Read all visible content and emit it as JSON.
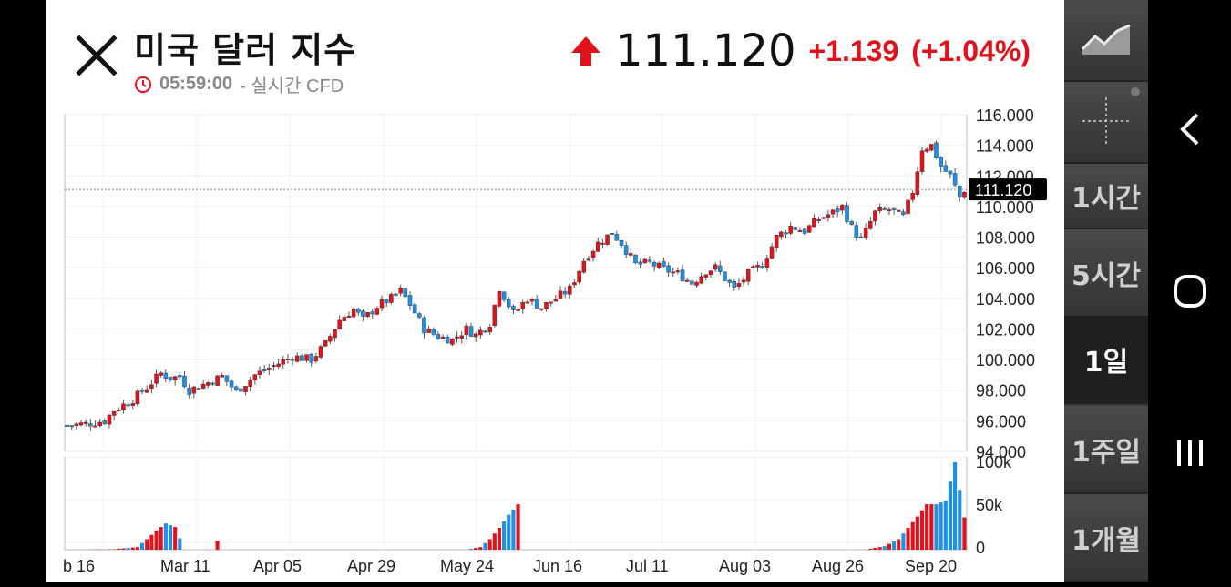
{
  "header": {
    "title": "미국 달러 지수",
    "time": "05:59:00",
    "time_suffix": "- 실시간 CFD",
    "price": "111.120",
    "change": "+1.139",
    "change_pct": "(+1.04%)",
    "up_color": "#e0131c"
  },
  "timeframes": [
    {
      "label": "1시간",
      "active": false
    },
    {
      "label": "5시간",
      "active": false
    },
    {
      "label": "1일",
      "active": true
    },
    {
      "label": "1주일",
      "active": false
    },
    {
      "label": "1개월",
      "active": false
    }
  ],
  "chart_data": {
    "type": "candlestick",
    "current_price_label": "111.120",
    "current_price": 111.12,
    "ylim": [
      94,
      116
    ],
    "y_ticks": [
      "116.000",
      "114.000",
      "112.000",
      "110.000",
      "108.000",
      "106.000",
      "104.000",
      "102.000",
      "100.000",
      "98.000",
      "96.000",
      "94.000"
    ],
    "x_ticks": [
      "b 16",
      "Mar 11",
      "Apr 05",
      "Apr 29",
      "May 24",
      "Jun 16",
      "Jul 11",
      "Aug 03",
      "Aug 26",
      "Sep 20"
    ],
    "volume_ticks": [
      "100k",
      "50k",
      "0"
    ],
    "up_color": "#e0131c",
    "down_color": "#1e90e6",
    "close_path": [
      [
        0,
        95.7
      ],
      [
        4,
        95.8
      ],
      [
        8,
        96.0
      ],
      [
        10,
        96.7
      ],
      [
        14,
        97.4
      ],
      [
        17,
        98.2
      ],
      [
        20,
        99.1
      ],
      [
        22,
        98.8
      ],
      [
        24,
        98.9
      ],
      [
        26,
        98.0
      ],
      [
        30,
        98.5
      ],
      [
        33,
        98.9
      ],
      [
        36,
        97.9
      ],
      [
        40,
        99.0
      ],
      [
        44,
        99.6
      ],
      [
        48,
        100.2
      ],
      [
        52,
        100.0
      ],
      [
        55,
        101.0
      ],
      [
        58,
        102.6
      ],
      [
        61,
        103.3
      ],
      [
        63,
        102.6
      ],
      [
        66,
        103.5
      ],
      [
        69,
        104.0
      ],
      [
        71,
        104.5
      ],
      [
        73,
        103.6
      ],
      [
        76,
        102.0
      ],
      [
        79,
        101.5
      ],
      [
        82,
        101.3
      ],
      [
        85,
        102.0
      ],
      [
        87,
        101.6
      ],
      [
        90,
        102.4
      ],
      [
        92,
        104.7
      ],
      [
        95,
        103.0
      ],
      [
        98,
        104.0
      ],
      [
        101,
        103.4
      ],
      [
        104,
        104.0
      ],
      [
        107,
        104.6
      ],
      [
        110,
        106.5
      ],
      [
        113,
        107.6
      ],
      [
        116,
        108.3
      ],
      [
        118,
        107.6
      ],
      [
        121,
        106.2
      ],
      [
        124,
        106.3
      ],
      [
        127,
        105.9
      ],
      [
        130,
        105.6
      ],
      [
        133,
        105.0
      ],
      [
        136,
        105.8
      ],
      [
        138,
        106.0
      ],
      [
        140,
        105.3
      ],
      [
        142,
        104.6
      ],
      [
        145,
        105.6
      ],
      [
        148,
        106.2
      ],
      [
        151,
        108.0
      ],
      [
        154,
        108.7
      ],
      [
        157,
        108.4
      ],
      [
        160,
        109.2
      ],
      [
        163,
        109.6
      ],
      [
        165,
        110.0
      ],
      [
        167,
        108.6
      ],
      [
        169,
        107.8
      ],
      [
        172,
        109.6
      ],
      [
        175,
        109.8
      ],
      [
        178,
        109.3
      ],
      [
        180,
        111.0
      ],
      [
        182,
        113.8
      ],
      [
        184,
        114.0
      ],
      [
        186,
        112.6
      ],
      [
        188,
        112.0
      ],
      [
        190,
        110.6
      ],
      [
        191,
        111.1
      ]
    ],
    "volume_path": [
      [
        0,
        0
      ],
      [
        10,
        0.5
      ],
      [
        15,
        3
      ],
      [
        17,
        12
      ],
      [
        19,
        22
      ],
      [
        21,
        30
      ],
      [
        23,
        26
      ],
      [
        25,
        0
      ],
      [
        31,
        0
      ],
      [
        32,
        10
      ],
      [
        33,
        0
      ],
      [
        85,
        0
      ],
      [
        88,
        3
      ],
      [
        90,
        12
      ],
      [
        92,
        25
      ],
      [
        94,
        40
      ],
      [
        96,
        52
      ],
      [
        97,
        0
      ],
      [
        170,
        0
      ],
      [
        174,
        4
      ],
      [
        177,
        12
      ],
      [
        179,
        25
      ],
      [
        181,
        38
      ],
      [
        183,
        52
      ],
      [
        185,
        52
      ],
      [
        187,
        56
      ],
      [
        189,
        100
      ],
      [
        191,
        37
      ]
    ],
    "n_candles": 192
  }
}
